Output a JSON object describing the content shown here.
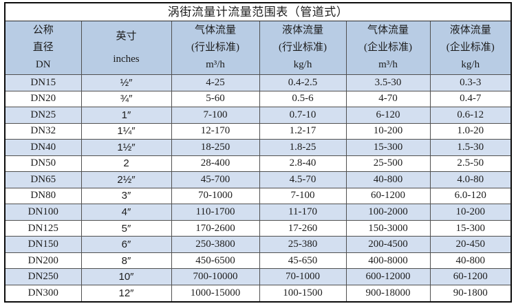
{
  "title": "涡街流量计流量范围表（管道式）",
  "colors": {
    "header_bg": "#b8cce4",
    "stripe_bg": "#d3dff0",
    "outer_border": "#0b0b0b",
    "grid_line": "#4f4f4f",
    "text": "#1c1c1c"
  },
  "table": {
    "columns": [
      {
        "lines": [
          "公称",
          "直径",
          "DN"
        ]
      },
      {
        "lines": [
          "英寸",
          "inches"
        ]
      },
      {
        "lines": [
          "气体流量",
          "(行业标准)",
          "m³/h"
        ]
      },
      {
        "lines": [
          "液体流量",
          "(行业标准)",
          "kg/h"
        ]
      },
      {
        "lines": [
          "气体流量",
          "(企业标准)",
          "m³/h"
        ]
      },
      {
        "lines": [
          "液体流量",
          "(企业标准)",
          "kg/h"
        ]
      }
    ],
    "rows": [
      [
        "DN15",
        "½″",
        "4-25",
        "0.4-2.5",
        "3.5-30",
        "0.3-3"
      ],
      [
        "DN20",
        "¾″",
        "5-60",
        "0.5-6",
        "4-70",
        "0.4-7"
      ],
      [
        "DN25",
        "1″",
        "7-100",
        "0.7-10",
        "6-120",
        "0.6-12"
      ],
      [
        "DN32",
        "1¼″",
        "12-170",
        "1.2-17",
        "10-200",
        "1.0-20"
      ],
      [
        "DN40",
        "1½″",
        "18-250",
        "1.8-25",
        "15-300",
        "1.5-30"
      ],
      [
        "DN50",
        "2",
        "28-400",
        "2.8-40",
        "25-500",
        "2.5-50"
      ],
      [
        "DN65",
        "2½″",
        "45-700",
        "4.5-70",
        "40-800",
        "4.0-80"
      ],
      [
        "DN80",
        "3″",
        "70-1000",
        "7-100",
        "60-1200",
        "6.0-120"
      ],
      [
        "DN100",
        "4″",
        "110-1700",
        "11-170",
        "100-2000",
        "10-200"
      ],
      [
        "DN125",
        "5″",
        "170-2600",
        "17-260",
        "150-3000",
        "15-300"
      ],
      [
        "DN150",
        "6″",
        "250-3800",
        "25-380",
        "200-4500",
        "20-450"
      ],
      [
        "DN200",
        "8″",
        "450-6500",
        "45-650",
        "400-8000",
        "40-800"
      ],
      [
        "DN250",
        "10″",
        "700-10000",
        "70-1000",
        "600-12000",
        "60-1200"
      ],
      [
        "DN300",
        "12″",
        "1000-15000",
        "100-1500",
        "900-18000",
        "90-1800"
      ]
    ]
  }
}
